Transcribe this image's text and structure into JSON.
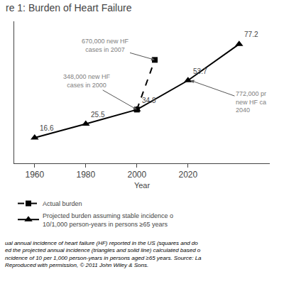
{
  "chart_data": {
    "type": "line",
    "title": "re 1: Burden of Heart Failure",
    "xlabel": "Year",
    "xlim": [
      1952,
      2052
    ],
    "xticks": [
      1960,
      1980,
      2000,
      2020
    ],
    "ylim": [
      0,
      92
    ],
    "yticks": [],
    "tick_labels": "x",
    "grid": false,
    "series": [
      {
        "name": "Actual burden",
        "x": [
          2000,
          2007
        ],
        "values": [
          34.8,
          67.0
        ],
        "color": "#000000",
        "marker": "square",
        "line_style": "dashed"
      },
      {
        "name": "Projected burden assuming stable incidence o\n10/1,000 person-years in persons ≥65 years",
        "x": [
          1960,
          1980,
          2000,
          2020,
          2040
        ],
        "values": [
          16.6,
          25.5,
          34.8,
          53.7,
          77.2
        ],
        "color": "#000000",
        "marker": "triangle-up",
        "line_style": "solid",
        "data_labels": true
      }
    ],
    "annotations": [
      {
        "text": "670,000 new HF\ncases in 2007",
        "x": 2007,
        "y": 67.0
      },
      {
        "text": "348,000 new HF\ncases in 2000",
        "x": 2000,
        "y": 34.8
      },
      {
        "text": "772,000 pr\nnew HF ca\n2040",
        "x": 2021,
        "y": 53.7
      }
    ],
    "caption": [
      "ual annual incidence of heart failure (HF) reported in the US (squares and do",
      "ed the projected annual incidence (triangles and solid line) calculated based o",
      "ncidence of 10 per 1,000 person-years in persons aged ≥65 years. Source: La",
      "Reproduced with permission, © 2011 John Wiley & Sons."
    ]
  }
}
